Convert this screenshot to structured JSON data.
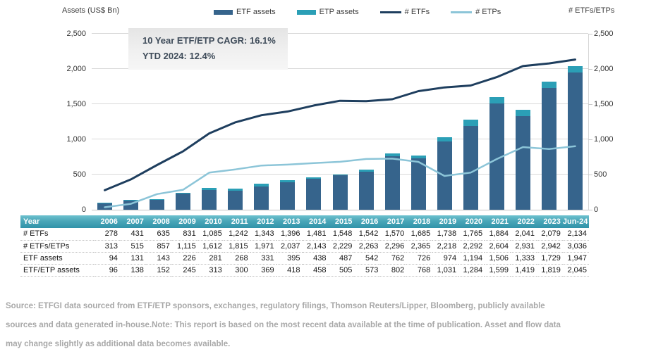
{
  "colors": {
    "etf_bar": "#36648c",
    "etp_bar": "#2b9fb6",
    "etf_line": "#1e3e5e",
    "etp_line": "#8cc5d8",
    "grid": "#d9d9d9",
    "table_header_top": "#6ec1ce",
    "table_header_bottom": "#3093a9",
    "annotation_text": "#3e4b59",
    "source_text": "#a8a8a8"
  },
  "axes": {
    "left_title": "Assets (US$ Bn)",
    "right_title": "# ETFs/ETPs"
  },
  "legend": [
    {
      "label": "ETF assets",
      "kind": "bar",
      "color": "#36648c",
      "icon": "bar-swatch"
    },
    {
      "label": "ETP assets",
      "kind": "bar",
      "color": "#2b9fb6",
      "icon": "bar-swatch"
    },
    {
      "label": "# ETFs",
      "kind": "line",
      "color": "#1e3e5e",
      "icon": "line-swatch"
    },
    {
      "label": "# ETPs",
      "kind": "line",
      "color": "#8cc5d8",
      "icon": "line-swatch"
    }
  ],
  "annotation": {
    "line1": "10 Year ETF/ETP CAGR: 16.1%",
    "line2": "YTD 2024: 12.4%"
  },
  "chart_data": {
    "type": "bar",
    "subtype": "stacked-bars-with-dual-lines",
    "categories": [
      "2006",
      "2007",
      "2008",
      "2009",
      "2010",
      "2011",
      "2012",
      "2013",
      "2014",
      "2015",
      "2016",
      "2017",
      "2018",
      "2019",
      "2020",
      "2021",
      "2022",
      "2023",
      "Jun-24"
    ],
    "series": [
      {
        "name": "ETF assets",
        "type": "bar",
        "stack": "assets",
        "axis": "left",
        "color": "#36648c",
        "values": [
          94,
          131,
          143,
          226,
          281,
          268,
          331,
          395,
          438,
          487,
          542,
          762,
          726,
          974,
          1194,
          1506,
          1333,
          1729,
          1947
        ]
      },
      {
        "name": "ETP assets",
        "type": "bar",
        "stack": "assets",
        "axis": "left",
        "color": "#2b9fb6",
        "values": [
          2,
          7,
          9,
          19,
          32,
          32,
          38,
          23,
          20,
          18,
          31,
          40,
          42,
          57,
          90,
          93,
          86,
          90,
          98
        ]
      },
      {
        "name": "# ETFs",
        "type": "line",
        "axis": "right",
        "color": "#1e3e5e",
        "width": 3,
        "values": [
          278,
          431,
          635,
          831,
          1085,
          1242,
          1343,
          1396,
          1481,
          1548,
          1542,
          1570,
          1685,
          1738,
          1765,
          1884,
          2041,
          2079,
          2134
        ]
      },
      {
        "name": "# ETPs",
        "type": "line",
        "axis": "right",
        "color": "#8cc5d8",
        "width": 2.5,
        "values": [
          35,
          84,
          222,
          284,
          527,
          573,
          628,
          641,
          662,
          681,
          721,
          726,
          680,
          480,
          527,
          720,
          890,
          863,
          902
        ]
      }
    ],
    "bar_totals_etf_etp_assets": [
      96,
      138,
      152,
      245,
      313,
      300,
      369,
      418,
      458,
      505,
      573,
      802,
      768,
      1031,
      1284,
      1599,
      1419,
      1819,
      2045
    ],
    "title": "",
    "xlabel": "",
    "ylabel_left": "Assets (US$ Bn)",
    "ylabel_right": "# ETFs/ETPs",
    "ylim_left": [
      0,
      2500
    ],
    "ylim_right": [
      0,
      2500
    ],
    "yticks": [
      "0",
      "500",
      "1,000",
      "1,500",
      "2,000",
      "2,500"
    ],
    "grid": true,
    "legend_position": "top"
  },
  "table": {
    "header": [
      "Year",
      "2006",
      "2007",
      "2008",
      "2009",
      "2010",
      "2011",
      "2012",
      "2013",
      "2014",
      "2015",
      "2016",
      "2017",
      "2018",
      "2019",
      "2020",
      "2021",
      "2022",
      "2023",
      "Jun-24"
    ],
    "rows": [
      {
        "label": "# ETFs",
        "values": [
          "278",
          "431",
          "635",
          "831",
          "1,085",
          "1,242",
          "1,343",
          "1,396",
          "1,481",
          "1,548",
          "1,542",
          "1,570",
          "1,685",
          "1,738",
          "1,765",
          "1,884",
          "2,041",
          "2,079",
          "2,134"
        ]
      },
      {
        "label": "# ETFs/ETPs",
        "values": [
          "313",
          "515",
          "857",
          "1,115",
          "1,612",
          "1,815",
          "1,971",
          "2,037",
          "2,143",
          "2,229",
          "2,263",
          "2,296",
          "2,365",
          "2,218",
          "2,292",
          "2,604",
          "2,931",
          "2,942",
          "3,036"
        ]
      },
      {
        "label": "ETF assets",
        "values": [
          "94",
          "131",
          "143",
          "226",
          "281",
          "268",
          "331",
          "395",
          "438",
          "487",
          "542",
          "762",
          "726",
          "974",
          "1,194",
          "1,506",
          "1,333",
          "1,729",
          "1,947"
        ]
      },
      {
        "label": "ETF/ETP assets",
        "values": [
          "96",
          "138",
          "152",
          "245",
          "313",
          "300",
          "369",
          "418",
          "458",
          "505",
          "573",
          "802",
          "768",
          "1,031",
          "1,284",
          "1,599",
          "1,419",
          "1,819",
          "2,045"
        ]
      }
    ]
  },
  "footer": {
    "lines": [
      "Source: ETFGI data sourced from ETF/ETP sponsors, exchanges, regulatory filings, Thomson Reuters/Lipper, Bloomberg, publicly available",
      "sources and data generated in-house.Note: This report is based on the most recent data available at the time of publication. Asset and flow data",
      "may change slightly as additional data becomes available."
    ]
  }
}
